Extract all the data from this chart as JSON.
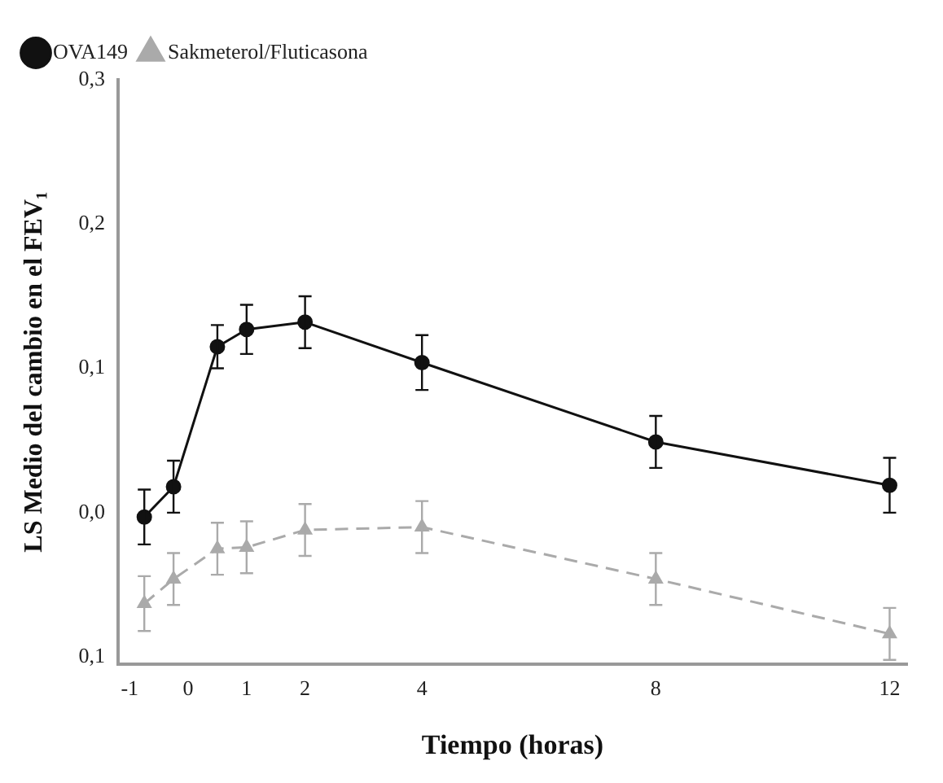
{
  "chart_data": {
    "type": "line",
    "xlabel": "Tiempo (horas)",
    "ylabel": "LS Medio del cambio en el FEV₁",
    "xlim": [
      -1.2,
      12.3
    ],
    "xticks": [
      -1,
      0,
      1,
      2,
      4,
      8,
      12
    ],
    "ylim": [
      -0.105,
      0.3
    ],
    "yticks": [
      {
        "value": -0.1,
        "label": "0,1"
      },
      {
        "value": 0,
        "label": "0,0"
      },
      {
        "value": 0.1,
        "label": "0,1"
      },
      {
        "value": 0.2,
        "label": "0,2"
      },
      {
        "value": 0.3,
        "label": "0,3"
      }
    ],
    "x": [
      -0.75,
      -0.25,
      0.5,
      1,
      2,
      4,
      8,
      12
    ],
    "grid": false,
    "legend": "top left",
    "series": [
      {
        "name": "OVA149",
        "color": "#111111",
        "marker": "circle",
        "line_style": "solid",
        "values": [
          -0.003,
          0.018,
          0.115,
          0.127,
          0.132,
          0.104,
          0.049,
          0.019
        ],
        "errors": [
          0.019,
          0.018,
          0.015,
          0.017,
          0.018,
          0.019,
          0.018,
          0.019
        ]
      },
      {
        "name": "Sakmeterol/Fluticasona",
        "color": "#aaaaaa",
        "marker": "triangle",
        "line_style": "dashed",
        "values": [
          -0.063,
          -0.046,
          -0.025,
          -0.024,
          -0.012,
          -0.01,
          -0.046,
          -0.084
        ],
        "errors": [
          0.019,
          0.018,
          0.018,
          0.018,
          0.018,
          0.018,
          0.018,
          0.018
        ]
      }
    ]
  }
}
